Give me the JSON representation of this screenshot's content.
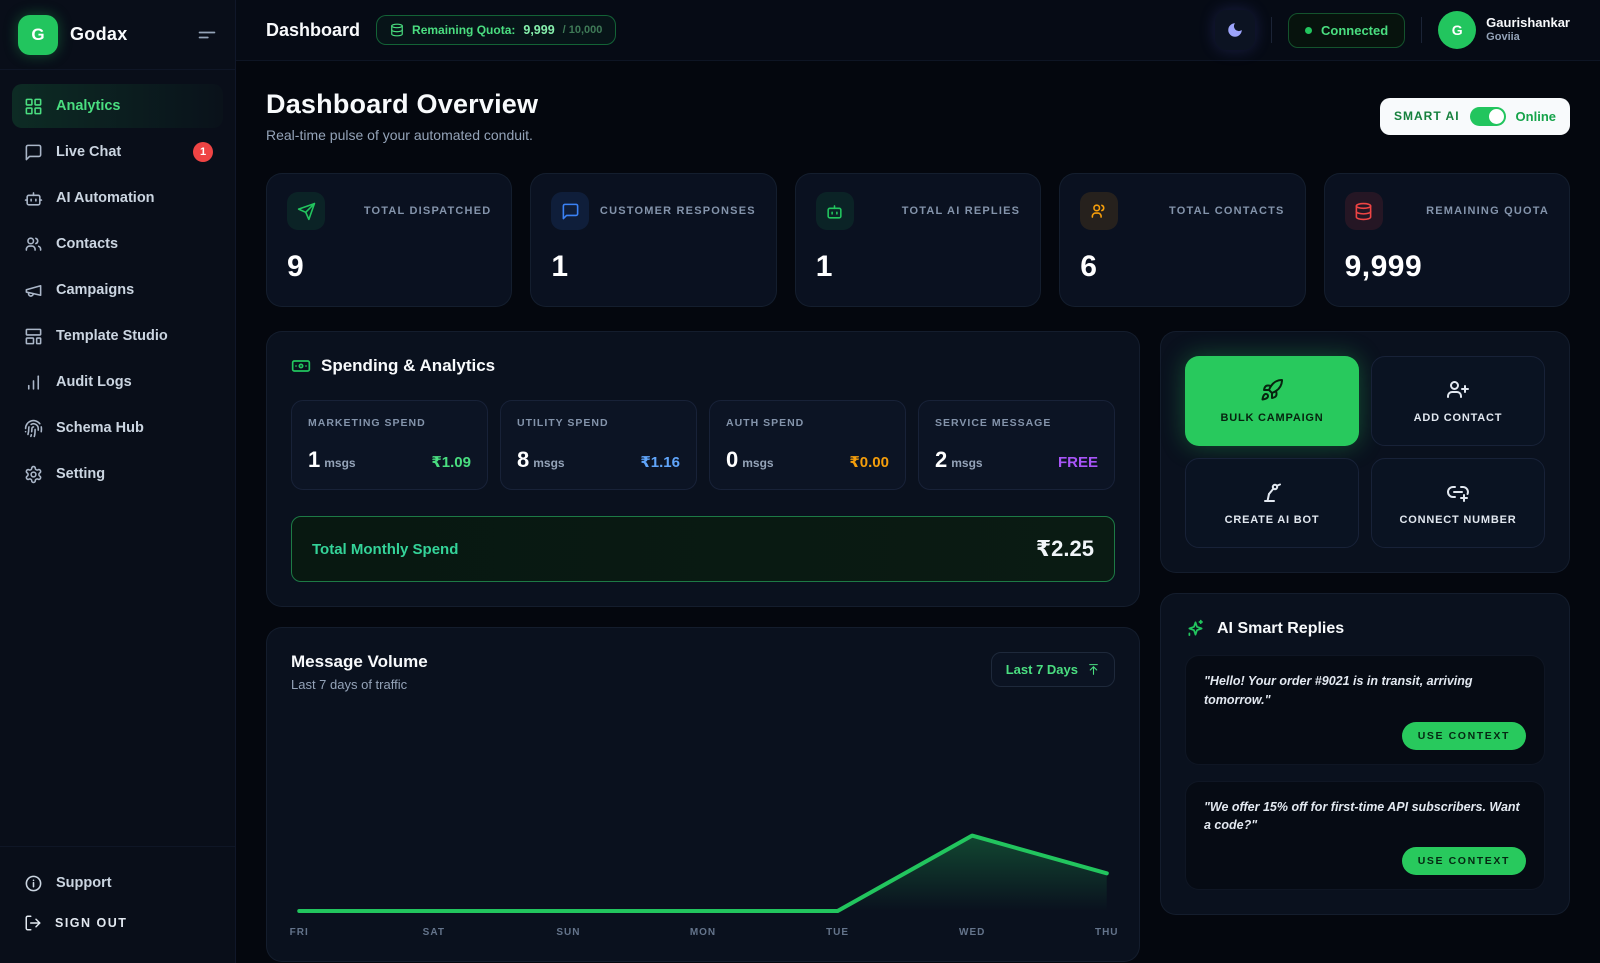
{
  "brand": {
    "name": "Godax",
    "initial": "G"
  },
  "topbar": {
    "title": "Dashboard",
    "quota_label": "Remaining Quota:",
    "quota_value": "9,999",
    "quota_total": "/ 10,000",
    "connected": "Connected",
    "user_name": "Gaurishankar",
    "user_subname": "Goviia",
    "user_initial": "G"
  },
  "sidebar": {
    "items": [
      {
        "label": "Analytics",
        "active": true
      },
      {
        "label": "Live Chat",
        "badge": "1"
      },
      {
        "label": "AI Automation"
      },
      {
        "label": "Contacts"
      },
      {
        "label": "Campaigns"
      },
      {
        "label": "Template Studio"
      },
      {
        "label": "Audit Logs"
      },
      {
        "label": "Schema Hub"
      },
      {
        "label": "Setting"
      }
    ],
    "support": "Support",
    "signout": "SIGN OUT"
  },
  "page": {
    "title": "Dashboard Overview",
    "subtitle": "Real-time pulse of your automated conduit.",
    "smart_ai_label": "SMART AI",
    "smart_ai_status": "Online"
  },
  "stats": [
    {
      "label": "TOTAL DISPATCHED",
      "value": "9",
      "icon": "send-icon",
      "color": "#22c55e"
    },
    {
      "label": "CUSTOMER RESPONSES",
      "value": "1",
      "icon": "message-icon",
      "color": "#3b82f6"
    },
    {
      "label": "TOTAL AI REPLIES",
      "value": "1",
      "icon": "bot-icon",
      "color": "#22c55e"
    },
    {
      "label": "TOTAL CONTACTS",
      "value": "6",
      "icon": "users-icon",
      "color": "#f59e0b"
    },
    {
      "label": "REMAINING QUOTA",
      "value": "9,999",
      "icon": "database-icon",
      "color": "#ef4444"
    }
  ],
  "spending": {
    "title": "Spending & Analytics",
    "cards": [
      {
        "label": "MARKETING SPEND",
        "count": "1",
        "unit": "msgs",
        "amount": "₹1.09",
        "amount_color": "#4ade80"
      },
      {
        "label": "UTILITY SPEND",
        "count": "8",
        "unit": "msgs",
        "amount": "₹1.16",
        "amount_color": "#60a5fa"
      },
      {
        "label": "AUTH SPEND",
        "count": "0",
        "unit": "msgs",
        "amount": "₹0.00",
        "amount_color": "#f59e0b"
      },
      {
        "label": "SERVICE MESSAGE",
        "count": "2",
        "unit": "msgs",
        "amount": "FREE",
        "amount_color": "#a855f7"
      }
    ],
    "total_label": "Total Monthly Spend",
    "total_value": "₹2.25"
  },
  "volume": {
    "title": "Message Volume",
    "subtitle": "Last 7 days of traffic",
    "range_label": "Last 7 Days"
  },
  "chart_data": {
    "type": "line",
    "title": "Message Volume",
    "categories": [
      "FRI",
      "SAT",
      "SUN",
      "MON",
      "TUE",
      "WED",
      "THU"
    ],
    "values": [
      0,
      0,
      0,
      0,
      0,
      8,
      4
    ],
    "line_color": "#22c55e",
    "fill": "green gradient fading down",
    "grid": false,
    "legend": false
  },
  "actions": [
    {
      "label": "BULK CAMPAIGN",
      "primary": true
    },
    {
      "label": "ADD CONTACT"
    },
    {
      "label": "CREATE AI BOT"
    },
    {
      "label": "CONNECT NUMBER"
    }
  ],
  "smart_replies": {
    "title": "AI Smart Replies",
    "items": [
      {
        "quote": "\"Hello! Your order #9021 is in transit, arriving tomorrow.\"",
        "button": "USE CONTEXT"
      },
      {
        "quote": "\"We offer 15% off for first-time API subscribers. Want a code?\"",
        "button": "USE CONTEXT"
      }
    ]
  },
  "colors": {
    "accent_green": "#22c55e",
    "badge_red": "#ef4444",
    "blue": "#3b82f6",
    "amber": "#f59e0b",
    "purple": "#a855f7",
    "moon_indigo": "#9da4fb"
  }
}
